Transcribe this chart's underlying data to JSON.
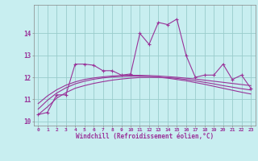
{
  "xlabel": "Windchill (Refroidissement éolien,°C)",
  "bg_color": "#c8eef0",
  "line_color": "#993399",
  "grid_color": "#99cccc",
  "x": [
    0,
    1,
    2,
    3,
    4,
    5,
    6,
    7,
    8,
    9,
    10,
    11,
    12,
    13,
    14,
    15,
    16,
    17,
    18,
    19,
    20,
    21,
    22,
    23
  ],
  "y_main": [
    10.3,
    10.4,
    11.2,
    11.2,
    12.6,
    12.6,
    12.55,
    12.3,
    12.3,
    12.1,
    12.15,
    14.0,
    13.5,
    14.5,
    14.4,
    14.65,
    13.0,
    12.0,
    12.1,
    12.1,
    12.6,
    11.9,
    12.1,
    11.5
  ],
  "y_smooth1": [
    10.3,
    10.65,
    11.05,
    11.3,
    11.5,
    11.62,
    11.72,
    11.8,
    11.87,
    11.92,
    11.96,
    11.99,
    12.0,
    12.0,
    11.98,
    11.95,
    11.9,
    11.84,
    11.77,
    11.7,
    11.62,
    11.55,
    11.48,
    11.42
  ],
  "y_smooth2": [
    10.55,
    10.95,
    11.28,
    11.52,
    11.7,
    11.82,
    11.91,
    11.97,
    12.01,
    12.04,
    12.05,
    12.05,
    12.03,
    12.0,
    11.96,
    11.9,
    11.84,
    11.76,
    11.68,
    11.59,
    11.5,
    11.41,
    11.32,
    11.24
  ],
  "y_smooth3": [
    10.8,
    11.15,
    11.43,
    11.64,
    11.79,
    11.9,
    11.97,
    12.02,
    12.06,
    12.08,
    12.09,
    12.09,
    12.08,
    12.06,
    12.03,
    12.0,
    11.96,
    11.92,
    11.87,
    11.82,
    11.77,
    11.72,
    11.67,
    11.62
  ],
  "ylim": [
    9.8,
    15.3
  ],
  "yticks": [
    10,
    11,
    12,
    13,
    14
  ],
  "figsize": [
    3.2,
    2.0
  ],
  "dpi": 100
}
